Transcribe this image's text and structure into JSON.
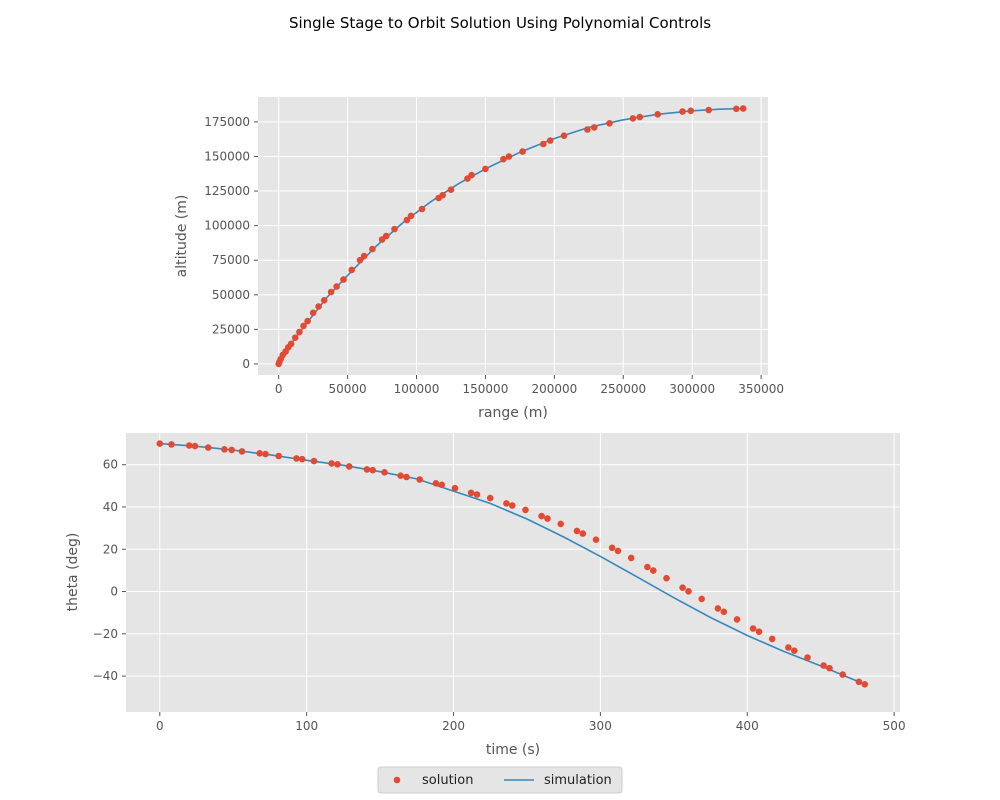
{
  "title": "Single Stage to Orbit Solution Using Polynomial Controls",
  "legend": {
    "placement": "bottom-center",
    "entries": [
      {
        "label": "solution",
        "kind": "marker",
        "color": "#E24A33"
      },
      {
        "label": "simulation",
        "kind": "line",
        "color": "#348ABD"
      }
    ]
  },
  "chart_data": [
    {
      "type": "scatter",
      "xlabel": "range (m)",
      "ylabel": "altitude (m)",
      "xlim": [
        -15000,
        355000
      ],
      "ylim": [
        -8000,
        193000
      ],
      "xticks": [
        0,
        50000,
        100000,
        150000,
        200000,
        250000,
        300000,
        350000
      ],
      "yticks": [
        0,
        25000,
        50000,
        75000,
        100000,
        125000,
        150000,
        175000
      ],
      "grid": true,
      "series": [
        {
          "name": "solution",
          "style": "markers",
          "color": "#E24A33",
          "x": [
            0,
            500,
            1500,
            3000,
            5000,
            7000,
            9000,
            12000,
            15000,
            18000,
            21000,
            25000,
            29000,
            33000,
            38000,
            42000,
            47000,
            53000,
            59000,
            62000,
            68000,
            75000,
            78000,
            84000,
            93000,
            96000,
            104000,
            116000,
            119000,
            125000,
            137000,
            140000,
            150000,
            163000,
            167000,
            177000,
            192000,
            197000,
            207000,
            224000,
            229000,
            240000,
            257000,
            262000,
            275000,
            293000,
            299000,
            312000,
            332000,
            337000
          ],
          "y": [
            0,
            1500,
            3500,
            6500,
            9000,
            12000,
            14500,
            19000,
            23000,
            27500,
            31000,
            37000,
            41500,
            46000,
            52000,
            56000,
            61000,
            68000,
            75000,
            78000,
            83000,
            90000,
            92500,
            97500,
            104000,
            107000,
            112000,
            120000,
            122000,
            126000,
            134000,
            136500,
            141000,
            148000,
            150000,
            153500,
            159000,
            161500,
            165000,
            169500,
            171000,
            174000,
            177500,
            178500,
            180500,
            182500,
            183000,
            183500,
            184500,
            184700
          ]
        },
        {
          "name": "simulation",
          "style": "line",
          "color": "#348ABD",
          "x": [
            0,
            3000,
            10000,
            20000,
            35000,
            50000,
            70000,
            90000,
            110000,
            130000,
            150000,
            175000,
            200000,
            225000,
            250000,
            275000,
            300000,
            320000,
            337000
          ],
          "y": [
            0,
            6500,
            16000,
            29000,
            48000,
            64000,
            84500,
            102000,
            117000,
            130000,
            141000,
            153000,
            163000,
            171000,
            176500,
            180500,
            183000,
            184200,
            184700
          ]
        }
      ]
    },
    {
      "type": "scatter",
      "xlabel": "time (s)",
      "ylabel": "theta (deg)",
      "xlim": [
        -23,
        504
      ],
      "ylim": [
        -57,
        75
      ],
      "xticks": [
        0,
        100,
        200,
        300,
        400,
        500
      ],
      "yticks": [
        -40,
        -20,
        0,
        20,
        40,
        60
      ],
      "grid": true,
      "series": [
        {
          "name": "solution",
          "style": "markers",
          "color": "#E24A33",
          "x": [
            0,
            8,
            20,
            24,
            33,
            44,
            49,
            56,
            68,
            72,
            81,
            93,
            97,
            105,
            117,
            121,
            129,
            141,
            145,
            153,
            164,
            168,
            177,
            188,
            192,
            201,
            212,
            216,
            225,
            236,
            240,
            249,
            260,
            264,
            273,
            284,
            288,
            297,
            308,
            312,
            321,
            332,
            336,
            345,
            356,
            360,
            369,
            380,
            384,
            393,
            404,
            408,
            417,
            428,
            432,
            441,
            452,
            456,
            465,
            476,
            480
          ],
          "y": [
            70,
            69.6,
            69.1,
            68.8,
            68.1,
            67.3,
            67,
            66.3,
            65.4,
            65,
            64.1,
            63,
            62.6,
            61.7,
            60.6,
            60.2,
            59.2,
            57.8,
            57.4,
            56.4,
            54.8,
            54.2,
            53,
            51.2,
            50.5,
            48.9,
            46.7,
            45.9,
            44.2,
            41.7,
            40.7,
            38.6,
            35.7,
            34.5,
            32,
            28.7,
            27.4,
            24.5,
            20.7,
            19.2,
            15.9,
            11.6,
            9.9,
            6.3,
            1.8,
            0.1,
            -3.5,
            -8,
            -9.6,
            -13.2,
            -17.5,
            -19,
            -22.4,
            -26.5,
            -28,
            -31.2,
            -35,
            -36.3,
            -39.3,
            -42.7,
            -43.9
          ]
        },
        {
          "name": "simulation",
          "style": "line",
          "color": "#348ABD",
          "x": [
            0,
            25,
            50,
            75,
            100,
            125,
            150,
            175,
            200,
            225,
            250,
            275,
            300,
            325,
            350,
            375,
            400,
            425,
            450,
            480
          ],
          "y": [
            70,
            68.7,
            66.9,
            64.7,
            62.1,
            59.7,
            56.7,
            53.3,
            47.5,
            41.7,
            34.3,
            25.8,
            16.6,
            6.9,
            -2.9,
            -12.3,
            -20.8,
            -28.4,
            -35.2,
            -43.9
          ]
        }
      ]
    }
  ]
}
